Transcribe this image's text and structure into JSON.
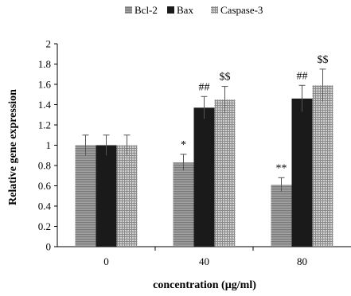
{
  "chart_data": {
    "type": "bar",
    "categories": [
      "0",
      "40",
      "80"
    ],
    "xlabel": "concentration (µg/ml)",
    "ylabel": "Relative gene expression",
    "ylim": [
      0,
      2
    ],
    "yticks": [
      "0",
      "0.2",
      "0.4",
      "0.6",
      "0.8",
      "1",
      "1.2",
      "1.4",
      "1.6",
      "1.8",
      "2"
    ],
    "grid": false,
    "legend_position": "top-center",
    "series": [
      {
        "name": "Bcl-2",
        "pattern": "horizontal-lines",
        "color": "#8c8c8c",
        "values": [
          1.0,
          0.83,
          0.61
        ],
        "errors": [
          0.1,
          0.08,
          0.07
        ],
        "annotations": [
          "",
          "*",
          "**"
        ]
      },
      {
        "name": "Bax",
        "pattern": "solid",
        "color": "#1a1a1a",
        "values": [
          1.0,
          1.37,
          1.46
        ],
        "errors": [
          0.1,
          0.11,
          0.13
        ],
        "annotations": [
          "",
          "##",
          "##"
        ]
      },
      {
        "name": "Caspase-3",
        "pattern": "grid",
        "color": "#a8a8a8",
        "values": [
          1.0,
          1.45,
          1.59
        ],
        "errors": [
          0.1,
          0.13,
          0.16
        ],
        "annotations": [
          "",
          "$$",
          "$$"
        ]
      }
    ]
  }
}
